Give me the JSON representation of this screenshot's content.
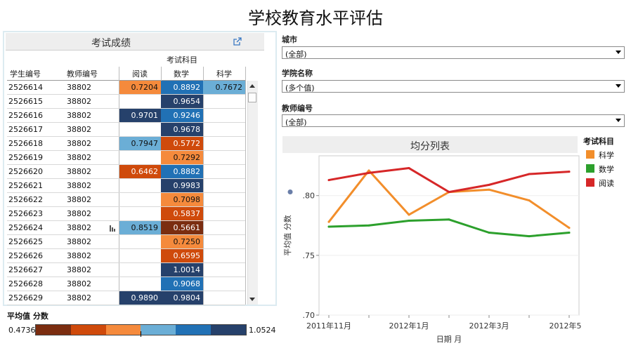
{
  "title": "学校教育水平评估",
  "scores_panel": {
    "title": "考试成绩",
    "group_header": "考试科目",
    "columns": {
      "student": "学生编号",
      "teacher": "教师编号",
      "reading": "阅读",
      "math": "数学",
      "science": "科学"
    },
    "rows": [
      {
        "student": "2526614",
        "teacher": "38802",
        "reading": "0.7204",
        "math": "0.8892",
        "science": "0.7672"
      },
      {
        "student": "2526615",
        "teacher": "38802",
        "reading": "",
        "math": "0.9654",
        "science": ""
      },
      {
        "student": "2526616",
        "teacher": "38802",
        "reading": "0.9701",
        "math": "0.9246",
        "science": ""
      },
      {
        "student": "2526617",
        "teacher": "38802",
        "reading": "",
        "math": "0.9678",
        "science": ""
      },
      {
        "student": "2526618",
        "teacher": "38802",
        "reading": "0.7947",
        "math": "0.5772",
        "science": ""
      },
      {
        "student": "2526619",
        "teacher": "38802",
        "reading": "",
        "math": "0.7292",
        "science": ""
      },
      {
        "student": "2526620",
        "teacher": "38802",
        "reading": "0.6462",
        "math": "0.8882",
        "science": ""
      },
      {
        "student": "2526621",
        "teacher": "38802",
        "reading": "",
        "math": "0.9983",
        "science": ""
      },
      {
        "student": "2526622",
        "teacher": "38802",
        "reading": "",
        "math": "0.7098",
        "science": ""
      },
      {
        "student": "2526623",
        "teacher": "38802",
        "reading": "",
        "math": "0.5837",
        "science": ""
      },
      {
        "student": "2526624",
        "teacher": "38802",
        "reading": "0.8519",
        "math": "0.5661",
        "science": ""
      },
      {
        "student": "2526625",
        "teacher": "38802",
        "reading": "",
        "math": "0.7250",
        "science": ""
      },
      {
        "student": "2526626",
        "teacher": "38802",
        "reading": "",
        "math": "0.6595",
        "science": ""
      },
      {
        "student": "2526627",
        "teacher": "38802",
        "reading": "",
        "math": "1.0014",
        "science": ""
      },
      {
        "student": "2526628",
        "teacher": "38802",
        "reading": "",
        "math": "0.9068",
        "science": ""
      },
      {
        "student": "2526629",
        "teacher": "38802",
        "reading": "0.9890",
        "math": "0.9804",
        "science": ""
      }
    ]
  },
  "color_legend": {
    "title": "平均值 分数",
    "min": "0.4736",
    "max": "1.0524",
    "colors": [
      "#7b2d10",
      "#cf4a0b",
      "#f58a3c",
      "#6baed6",
      "#2171b5",
      "#26416b"
    ]
  },
  "filters": [
    {
      "label": "城市",
      "value": "(全部)"
    },
    {
      "label": "学院名称",
      "value": "(多个值)"
    },
    {
      "label": "教师编号",
      "value": "(全部)"
    }
  ],
  "chart_data": {
    "type": "line",
    "title": "均分列表",
    "xlabel": "日期 月",
    "ylabel": "平均值 分数",
    "x": [
      "2011年11月",
      "2011年12月",
      "2012年1月",
      "2012年2月",
      "2012年3月",
      "2012年4月",
      "2012年5月"
    ],
    "x_tick_labels": [
      "2011年11月",
      "2012年1月",
      "2012年3月",
      "2012年5月"
    ],
    "y_ticks": [
      ".70",
      ".75",
      ".80"
    ],
    "ylim": [
      0.7,
      0.8333
    ],
    "legend_title": "考试科目",
    "legend_position": "right",
    "series": [
      {
        "name": "科学",
        "color": "#f28e2b",
        "values": [
          0.778,
          0.821,
          0.784,
          0.803,
          0.805,
          0.796,
          0.773
        ]
      },
      {
        "name": "数学",
        "color": "#2ca02c",
        "values": [
          0.774,
          0.775,
          0.779,
          0.78,
          0.769,
          0.766,
          0.769
        ]
      },
      {
        "name": "阅读",
        "color": "#d62728",
        "values": [
          0.813,
          0.819,
          0.823,
          0.803,
          0.809,
          0.818,
          0.82
        ]
      }
    ]
  }
}
